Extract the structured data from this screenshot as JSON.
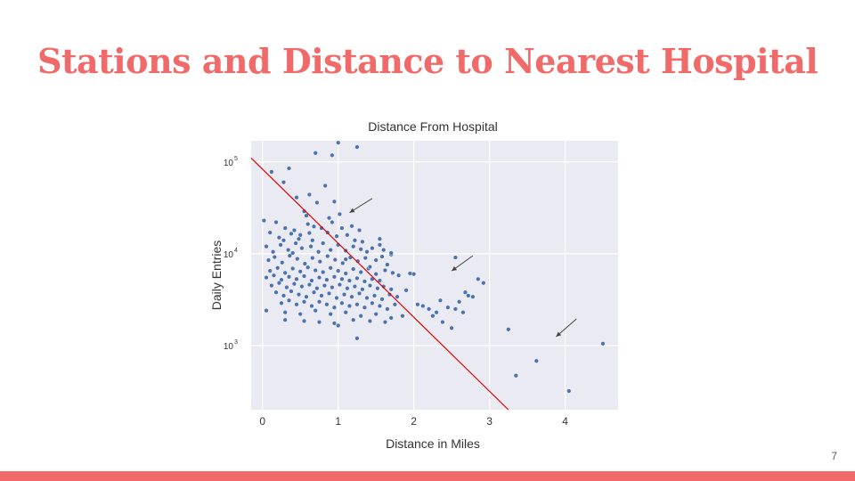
{
  "slide": {
    "title": "Stations and Distance to Nearest Hospital",
    "page_number": "7",
    "accent_color": "#f06a6a"
  },
  "chart_data": {
    "type": "scatter",
    "title": "Distance From Hospital",
    "xlabel": "Distance in Miles",
    "ylabel": "Daily Entries",
    "xlim": [
      -0.15,
      4.7
    ],
    "ylim": [
      200,
      170000
    ],
    "yscale": "log",
    "x_ticks": [
      0,
      1,
      2,
      3,
      4
    ],
    "y_ticks": [
      {
        "value": 1000,
        "base": "10",
        "exp": "3"
      },
      {
        "value": 10000,
        "base": "10",
        "exp": "4"
      },
      {
        "value": 100000,
        "base": "10",
        "exp": "5"
      }
    ],
    "grid": true,
    "background_color": "#eaeaf2",
    "point_color": "#4c72b0",
    "trend_line": {
      "color": "#e00000",
      "points": [
        [
          -0.15,
          110000
        ],
        [
          3.25,
          200
        ]
      ]
    },
    "arrows": [
      {
        "from": [
          1.45,
          40000
        ],
        "to": [
          1.15,
          28000
        ]
      },
      {
        "from": [
          2.78,
          9500
        ],
        "to": [
          2.5,
          6500
        ]
      },
      {
        "from": [
          4.15,
          1950
        ],
        "to": [
          3.88,
          1250
        ]
      }
    ],
    "points": [
      [
        0.12,
        78000
      ],
      [
        0.28,
        60000
      ],
      [
        0.35,
        85000
      ],
      [
        0.7,
        125000
      ],
      [
        0.92,
        118000
      ],
      [
        1.0,
        162000
      ],
      [
        1.25,
        145000
      ],
      [
        0.45,
        41000
      ],
      [
        0.62,
        44000
      ],
      [
        0.83,
        55000
      ],
      [
        0.95,
        37000
      ],
      [
        0.55,
        29000
      ],
      [
        0.72,
        36000
      ],
      [
        0.02,
        23000
      ],
      [
        0.18,
        22000
      ],
      [
        0.1,
        17000
      ],
      [
        0.3,
        19000
      ],
      [
        0.22,
        15000
      ],
      [
        0.42,
        18000
      ],
      [
        0.5,
        16000
      ],
      [
        0.6,
        21000
      ],
      [
        0.66,
        14000
      ],
      [
        0.78,
        19000
      ],
      [
        0.86,
        17000
      ],
      [
        0.92,
        22000
      ],
      [
        1.05,
        19000
      ],
      [
        1.12,
        16000
      ],
      [
        1.18,
        20000
      ],
      [
        1.28,
        18000
      ],
      [
        1.22,
        14000
      ],
      [
        0.05,
        12000
      ],
      [
        0.14,
        10500
      ],
      [
        0.24,
        12500
      ],
      [
        0.34,
        11000
      ],
      [
        0.44,
        13000
      ],
      [
        0.52,
        11500
      ],
      [
        0.64,
        12000
      ],
      [
        0.74,
        10500
      ],
      [
        0.8,
        13000
      ],
      [
        0.9,
        11000
      ],
      [
        1.0,
        12500
      ],
      [
        1.1,
        10800
      ],
      [
        1.2,
        12000
      ],
      [
        1.3,
        11200
      ],
      [
        1.38,
        10500
      ],
      [
        1.45,
        11500
      ],
      [
        1.55,
        12500
      ],
      [
        1.6,
        11000
      ],
      [
        0.08,
        8500
      ],
      [
        0.16,
        9200
      ],
      [
        0.26,
        8000
      ],
      [
        0.36,
        9500
      ],
      [
        0.46,
        8800
      ],
      [
        0.56,
        7800
      ],
      [
        0.66,
        9000
      ],
      [
        0.76,
        8200
      ],
      [
        0.86,
        9400
      ],
      [
        0.96,
        8600
      ],
      [
        1.06,
        7900
      ],
      [
        1.16,
        9100
      ],
      [
        1.26,
        8300
      ],
      [
        1.36,
        9000
      ],
      [
        1.5,
        8500
      ],
      [
        1.58,
        9300
      ],
      [
        1.65,
        7600
      ],
      [
        1.7,
        9800
      ],
      [
        0.1,
        6500
      ],
      [
        0.2,
        7000
      ],
      [
        0.3,
        6200
      ],
      [
        0.4,
        6900
      ],
      [
        0.5,
        6400
      ],
      [
        0.6,
        7100
      ],
      [
        0.7,
        6600
      ],
      [
        0.8,
        6300
      ],
      [
        0.9,
        7000
      ],
      [
        1.0,
        6500
      ],
      [
        1.1,
        6100
      ],
      [
        1.2,
        6800
      ],
      [
        1.3,
        6300
      ],
      [
        1.4,
        6900
      ],
      [
        1.5,
        6000
      ],
      [
        1.62,
        6600
      ],
      [
        1.72,
        6200
      ],
      [
        1.95,
        6100
      ],
      [
        0.05,
        5500
      ],
      [
        0.15,
        5800
      ],
      [
        0.25,
        5200
      ],
      [
        0.35,
        5600
      ],
      [
        0.45,
        5300
      ],
      [
        0.55,
        5700
      ],
      [
        0.65,
        5100
      ],
      [
        0.75,
        5500
      ],
      [
        0.85,
        5200
      ],
      [
        0.95,
        5600
      ],
      [
        1.05,
        5300
      ],
      [
        1.15,
        5100
      ],
      [
        1.25,
        5400
      ],
      [
        1.35,
        5000
      ],
      [
        1.45,
        5300
      ],
      [
        1.55,
        5100
      ],
      [
        0.12,
        4500
      ],
      [
        0.22,
        4800
      ],
      [
        0.32,
        4300
      ],
      [
        0.42,
        4700
      ],
      [
        0.52,
        4400
      ],
      [
        0.62,
        4600
      ],
      [
        0.72,
        4200
      ],
      [
        0.82,
        4500
      ],
      [
        0.92,
        4300
      ],
      [
        1.02,
        4600
      ],
      [
        1.12,
        4200
      ],
      [
        1.22,
        4400
      ],
      [
        1.32,
        4100
      ],
      [
        1.42,
        4500
      ],
      [
        1.52,
        4200
      ],
      [
        1.6,
        4400
      ],
      [
        1.7,
        4100
      ],
      [
        1.9,
        4000
      ],
      [
        0.18,
        3800
      ],
      [
        0.28,
        3500
      ],
      [
        0.38,
        3900
      ],
      [
        0.48,
        3600
      ],
      [
        0.58,
        3400
      ],
      [
        0.68,
        3800
      ],
      [
        0.78,
        3500
      ],
      [
        0.88,
        3700
      ],
      [
        0.98,
        3300
      ],
      [
        1.08,
        3600
      ],
      [
        1.18,
        3400
      ],
      [
        1.28,
        3700
      ],
      [
        1.38,
        3300
      ],
      [
        1.48,
        3500
      ],
      [
        1.58,
        3200
      ],
      [
        1.68,
        3600
      ],
      [
        1.78,
        3400
      ],
      [
        0.25,
        2900
      ],
      [
        0.35,
        3100
      ],
      [
        0.45,
        2800
      ],
      [
        0.55,
        3000
      ],
      [
        0.65,
        2700
      ],
      [
        0.75,
        3000
      ],
      [
        0.85,
        2800
      ],
      [
        0.95,
        2600
      ],
      [
        1.05,
        2900
      ],
      [
        1.15,
        2700
      ],
      [
        1.25,
        2800
      ],
      [
        1.35,
        2600
      ],
      [
        1.45,
        2900
      ],
      [
        1.55,
        2700
      ],
      [
        1.65,
        2500
      ],
      [
        1.75,
        2800
      ],
      [
        0.05,
        2400
      ],
      [
        0.3,
        2300
      ],
      [
        0.5,
        2200
      ],
      [
        0.7,
        2400
      ],
      [
        0.9,
        2200
      ],
      [
        1.1,
        2300
      ],
      [
        1.3,
        2100
      ],
      [
        1.5,
        2200
      ],
      [
        1.7,
        2000
      ],
      [
        1.85,
        2100
      ],
      [
        0.3,
        1900
      ],
      [
        0.55,
        1850
      ],
      [
        0.75,
        1800
      ],
      [
        0.95,
        1750
      ],
      [
        1.2,
        1900
      ],
      [
        1.42,
        1850
      ],
      [
        1.62,
        1800
      ],
      [
        1.0,
        1650
      ],
      [
        1.25,
        1200
      ],
      [
        2.0,
        6000
      ],
      [
        2.12,
        2700
      ],
      [
        2.2,
        2500
      ],
      [
        2.3,
        2300
      ],
      [
        2.35,
        3100
      ],
      [
        2.45,
        2600
      ],
      [
        2.55,
        2500
      ],
      [
        2.6,
        3000
      ],
      [
        2.68,
        3800
      ],
      [
        2.72,
        3500
      ],
      [
        2.78,
        3400
      ],
      [
        2.85,
        5300
      ],
      [
        2.92,
        4800
      ],
      [
        2.5,
        1550
      ],
      [
        2.55,
        9100
      ],
      [
        2.05,
        2800
      ],
      [
        2.25,
        2100
      ],
      [
        2.38,
        1800
      ],
      [
        2.65,
        2300
      ],
      [
        3.25,
        1500
      ],
      [
        3.35,
        470
      ],
      [
        3.62,
        680
      ],
      [
        4.05,
        320
      ],
      [
        4.5,
        1050
      ],
      [
        1.1,
        8700
      ],
      [
        0.38,
        16500
      ],
      [
        0.68,
        19800
      ],
      [
        0.88,
        24500
      ],
      [
        1.02,
        27000
      ],
      [
        0.58,
        26000
      ],
      [
        0.48,
        14500
      ],
      [
        0.28,
        14000
      ],
      [
        1.32,
        13500
      ],
      [
        1.42,
        7200
      ],
      [
        0.4,
        10200
      ],
      [
        0.62,
        16800
      ],
      [
        0.98,
        15500
      ],
      [
        1.55,
        14500
      ],
      [
        1.7,
        10200
      ],
      [
        1.8,
        5800
      ]
    ]
  }
}
